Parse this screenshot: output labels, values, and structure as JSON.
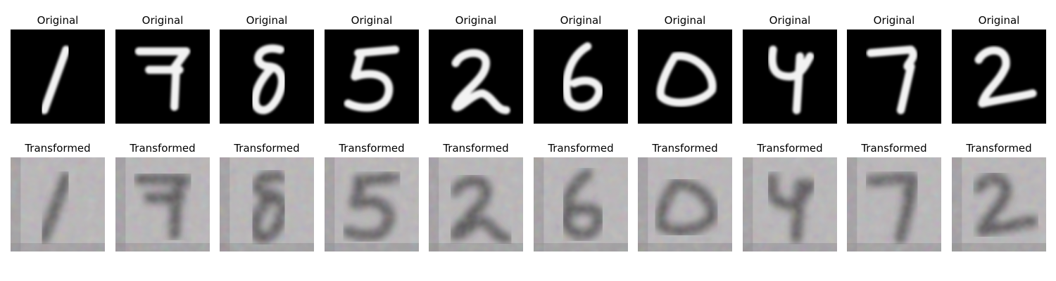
{
  "rows": {
    "original": {
      "title": "Original",
      "digits": [
        "1",
        "7",
        "8",
        "5",
        "2",
        "6",
        "0",
        "4",
        "7",
        "2"
      ]
    },
    "transformed": {
      "title": "Transformed",
      "digits": [
        "1",
        "7",
        "8",
        "5",
        "2",
        "6",
        "0",
        "4",
        "7",
        "2"
      ]
    }
  },
  "colors": {
    "original_background": "#000000",
    "original_stroke": "#f2f2f2",
    "transformed_background": "#b9b6b8",
    "transformed_stroke": "#3e3b3d"
  }
}
